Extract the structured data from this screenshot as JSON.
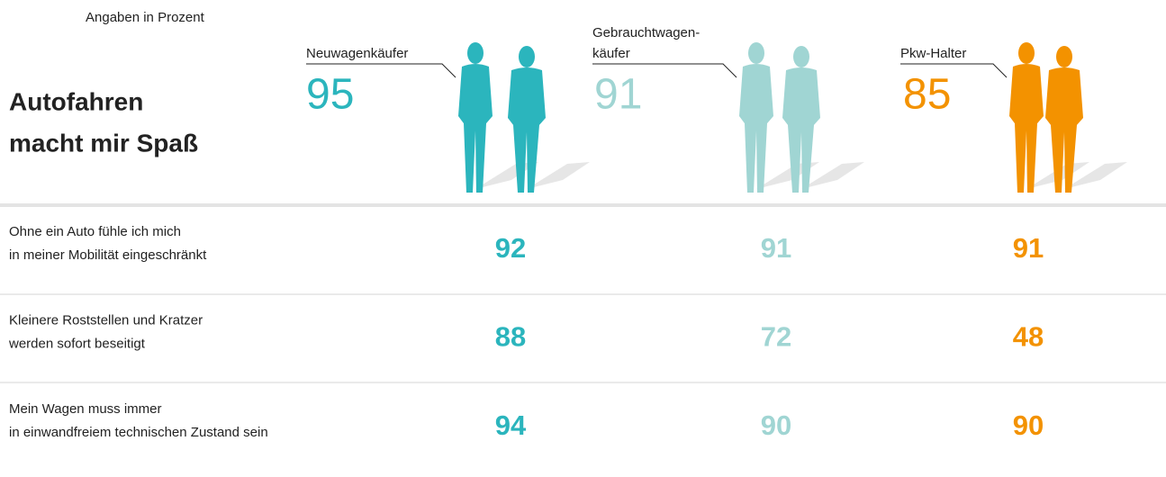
{
  "note": "Angaben in Prozent",
  "title": [
    "Autofahren",
    "macht mir Spaß"
  ],
  "groups": [
    {
      "label": [
        "Neuwagenkäufer"
      ],
      "value": "95",
      "color": "#2bb5bd"
    },
    {
      "label": [
        "Gebrauchtwagen-",
        "käufer"
      ],
      "value": "91",
      "color": "#a0d5d3"
    },
    {
      "label": [
        "Pkw-Halter"
      ],
      "value": "85",
      "color": "#f39200"
    }
  ],
  "rows": [
    {
      "label": [
        "Ohne ein Auto fühle ich mich",
        "in meiner Mobilität eingeschränkt"
      ],
      "values": [
        "92",
        "91",
        "91"
      ]
    },
    {
      "label": [
        "Kleinere Roststellen und Kratzer",
        "werden sofort beseitigt"
      ],
      "values": [
        "88",
        "72",
        "48"
      ]
    },
    {
      "label": [
        "Mein Wagen muss immer",
        "in einwandfreiem technischen Zustand sein"
      ],
      "values": [
        "94",
        "90",
        "90"
      ]
    }
  ]
}
